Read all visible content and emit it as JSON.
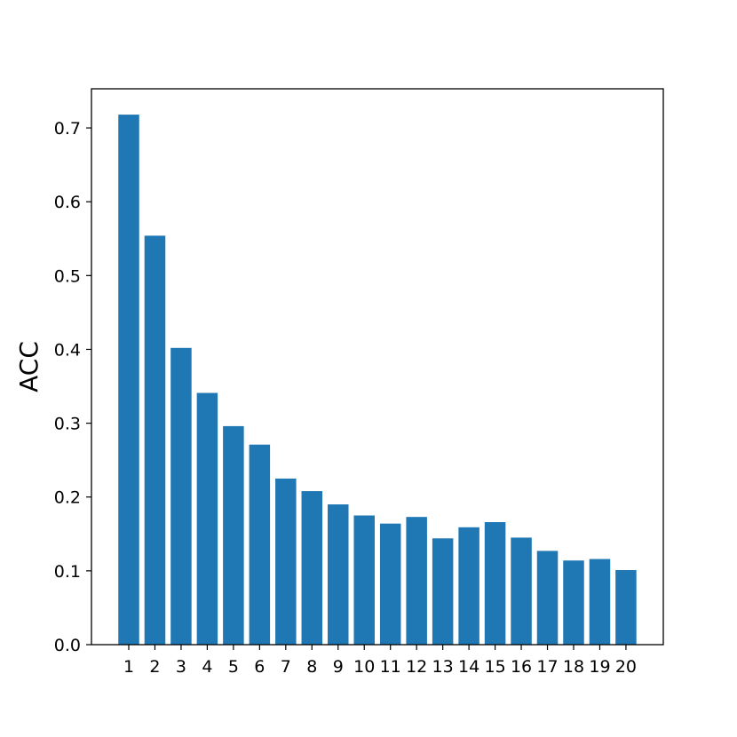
{
  "chart_data": {
    "type": "bar",
    "categories": [
      "1",
      "2",
      "3",
      "4",
      "5",
      "6",
      "7",
      "8",
      "9",
      "10",
      "11",
      "12",
      "13",
      "14",
      "15",
      "16",
      "17",
      "18",
      "19",
      "20"
    ],
    "values": [
      0.718,
      0.554,
      0.402,
      0.341,
      0.296,
      0.271,
      0.225,
      0.208,
      0.19,
      0.175,
      0.164,
      0.173,
      0.144,
      0.159,
      0.166,
      0.145,
      0.127,
      0.114,
      0.116,
      0.101
    ],
    "xlabel": "",
    "ylabel": "ACC",
    "ylim": [
      0,
      0.753
    ],
    "yticks": [
      "0.0",
      "0.1",
      "0.2",
      "0.3",
      "0.4",
      "0.5",
      "0.6",
      "0.7"
    ],
    "grid": false,
    "colors": {
      "bar": "#1f77b4",
      "axis": "#000000",
      "background": "#ffffff"
    }
  }
}
